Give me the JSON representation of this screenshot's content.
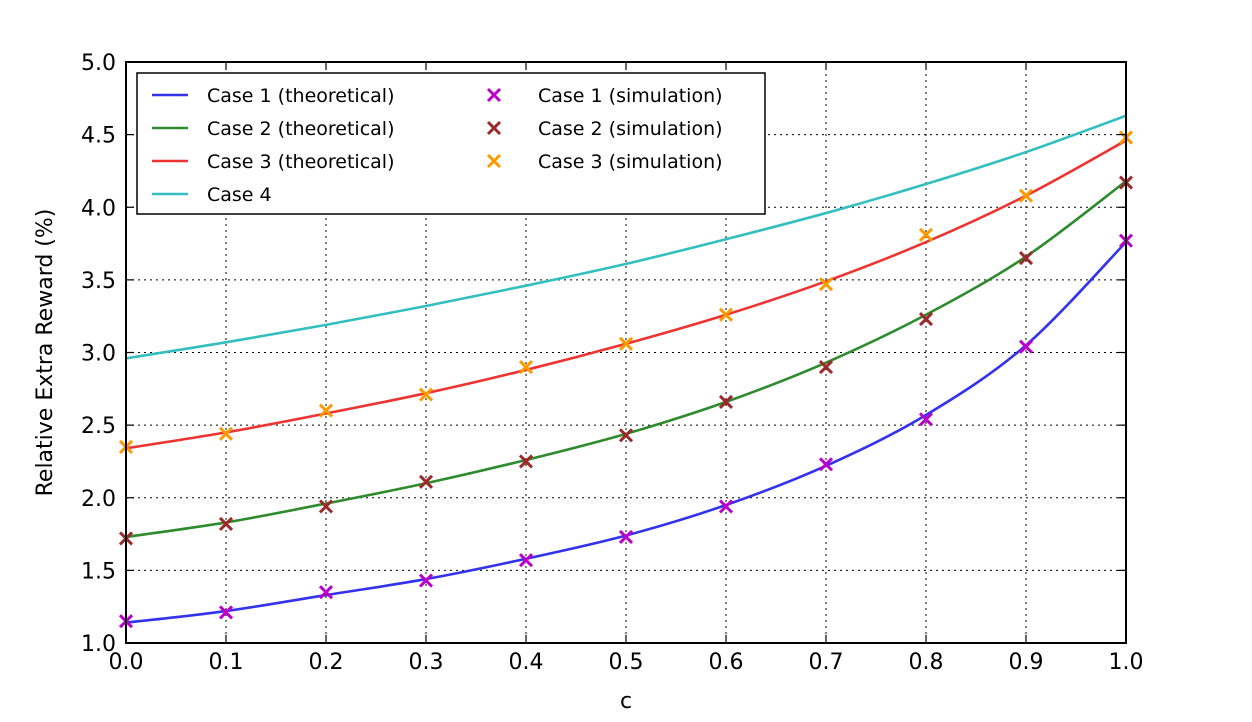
{
  "chart_data": {
    "type": "line",
    "title": "",
    "xlabel": "c",
    "ylabel": "Relative Extra Reward (%)",
    "xlim": [
      0.0,
      1.0
    ],
    "ylim": [
      1.0,
      5.0
    ],
    "xticks": [
      "0.0",
      "0.1",
      "0.2",
      "0.3",
      "0.4",
      "0.5",
      "0.6",
      "0.7",
      "0.8",
      "0.9",
      "1.0"
    ],
    "yticks": [
      "1.0",
      "1.5",
      "2.0",
      "2.5",
      "3.0",
      "3.5",
      "4.0",
      "4.5",
      "5.0"
    ],
    "grid": true,
    "legend_placement": "top-left",
    "x": [
      0.0,
      0.1,
      0.2,
      0.3,
      0.4,
      0.5,
      0.6,
      0.7,
      0.8,
      0.9,
      1.0
    ],
    "series": [
      {
        "name": "Case 1 (theoretical)",
        "kind": "line",
        "color": "#3333ee",
        "values": [
          1.14,
          1.22,
          1.33,
          1.44,
          1.58,
          1.74,
          1.95,
          2.22,
          2.57,
          3.05,
          3.76
        ]
      },
      {
        "name": "Case 2 (theoretical)",
        "kind": "line",
        "color": "#2e8b2e",
        "values": [
          1.73,
          1.83,
          1.96,
          2.1,
          2.26,
          2.44,
          2.66,
          2.93,
          3.26,
          3.66,
          4.18
        ]
      },
      {
        "name": "Case 3 (theoretical)",
        "kind": "line",
        "color": "#ee3333",
        "values": [
          2.34,
          2.45,
          2.58,
          2.72,
          2.88,
          3.06,
          3.26,
          3.49,
          3.76,
          4.08,
          4.46
        ]
      },
      {
        "name": "Case 4",
        "kind": "line",
        "color": "#33bfbf",
        "values": [
          2.96,
          3.07,
          3.19,
          3.32,
          3.46,
          3.61,
          3.78,
          3.96,
          4.16,
          4.38,
          4.63
        ]
      },
      {
        "name": "Case 1 (simulation)",
        "kind": "marker",
        "color": "#bb00cc",
        "values": [
          1.15,
          1.21,
          1.35,
          1.43,
          1.57,
          1.73,
          1.94,
          2.23,
          2.54,
          3.04,
          3.77
        ]
      },
      {
        "name": "Case 2 (simulation)",
        "kind": "marker",
        "color": "#9c2a2a",
        "values": [
          1.72,
          1.82,
          1.94,
          2.11,
          2.25,
          2.43,
          2.66,
          2.9,
          3.23,
          3.65,
          4.17
        ]
      },
      {
        "name": "Case 3 (simulation)",
        "kind": "marker",
        "color": "#ff9900",
        "values": [
          2.35,
          2.44,
          2.6,
          2.71,
          2.9,
          3.06,
          3.26,
          3.47,
          3.81,
          4.08,
          4.48
        ]
      }
    ]
  }
}
